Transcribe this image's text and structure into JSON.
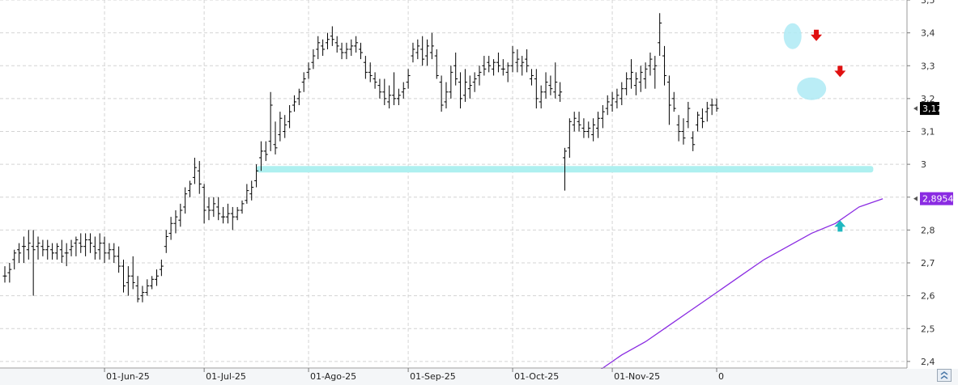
{
  "chart_data": {
    "type": "ohlc",
    "title": "",
    "xlabel": "",
    "ylabel": "",
    "ylim": [
      2.38,
      3.5
    ],
    "y_ticks": [
      "2,4",
      "2,5",
      "2,6",
      "2,7",
      "2,8",
      "2,9",
      "3",
      "3,1",
      "3,2",
      "3,3",
      "3,4",
      "3,5"
    ],
    "y_tick_values": [
      2.4,
      2.5,
      2.6,
      2.7,
      2.8,
      2.9,
      3.0,
      3.1,
      3.2,
      3.3,
      3.4,
      3.5
    ],
    "x_ticks": [
      "01-Jun-25",
      "01-Jul-25",
      "01-Ago-25",
      "01-Sep-25",
      "01-Oct-25",
      "01-Nov-25",
      "0"
    ],
    "x_tick_index": [
      21,
      42,
      64,
      85,
      107,
      128,
      150
    ],
    "ohlc": [
      [
        2.66,
        2.69,
        2.64,
        2.66
      ],
      [
        2.67,
        2.7,
        2.64,
        2.68
      ],
      [
        2.71,
        2.74,
        2.68,
        2.73
      ],
      [
        2.74,
        2.76,
        2.7,
        2.73
      ],
      [
        2.75,
        2.78,
        2.7,
        2.75
      ],
      [
        2.74,
        2.8,
        2.71,
        2.76
      ],
      [
        2.75,
        2.8,
        2.6,
        2.74
      ],
      [
        2.75,
        2.78,
        2.71,
        2.76
      ],
      [
        2.75,
        2.77,
        2.72,
        2.74
      ],
      [
        2.74,
        2.77,
        2.71,
        2.75
      ],
      [
        2.74,
        2.76,
        2.71,
        2.73
      ],
      [
        2.73,
        2.76,
        2.71,
        2.75
      ],
      [
        2.74,
        2.77,
        2.7,
        2.72
      ],
      [
        2.73,
        2.76,
        2.69,
        2.73
      ],
      [
        2.74,
        2.77,
        2.72,
        2.75
      ],
      [
        2.76,
        2.78,
        2.72,
        2.77
      ],
      [
        2.76,
        2.79,
        2.73,
        2.75
      ],
      [
        2.75,
        2.79,
        2.72,
        2.77
      ],
      [
        2.77,
        2.79,
        2.73,
        2.76
      ],
      [
        2.75,
        2.78,
        2.71,
        2.73
      ],
      [
        2.74,
        2.79,
        2.71,
        2.76
      ],
      [
        2.76,
        2.78,
        2.7,
        2.73
      ],
      [
        2.73,
        2.76,
        2.71,
        2.74
      ],
      [
        2.74,
        2.76,
        2.7,
        2.72
      ],
      [
        2.72,
        2.75,
        2.67,
        2.69
      ],
      [
        2.69,
        2.71,
        2.61,
        2.63
      ],
      [
        2.64,
        2.69,
        2.6,
        2.66
      ],
      [
        2.66,
        2.72,
        2.62,
        2.64
      ],
      [
        2.63,
        2.66,
        2.58,
        2.59
      ],
      [
        2.6,
        2.63,
        2.58,
        2.61
      ],
      [
        2.61,
        2.65,
        2.6,
        2.63
      ],
      [
        2.63,
        2.66,
        2.62,
        2.65
      ],
      [
        2.65,
        2.68,
        2.63,
        2.66
      ],
      [
        2.68,
        2.71,
        2.66,
        2.69
      ],
      [
        2.75,
        2.8,
        2.73,
        2.78
      ],
      [
        2.79,
        2.84,
        2.77,
        2.82
      ],
      [
        2.82,
        2.86,
        2.79,
        2.84
      ],
      [
        2.83,
        2.88,
        2.81,
        2.86
      ],
      [
        2.87,
        2.93,
        2.85,
        2.91
      ],
      [
        2.92,
        2.95,
        2.9,
        2.94
      ],
      [
        2.96,
        3.02,
        2.94,
        2.99
      ],
      [
        2.98,
        3.01,
        2.91,
        2.94
      ],
      [
        2.93,
        2.94,
        2.82,
        2.86
      ],
      [
        2.87,
        2.9,
        2.83,
        2.86
      ],
      [
        2.86,
        2.9,
        2.84,
        2.88
      ],
      [
        2.87,
        2.9,
        2.83,
        2.85
      ],
      [
        2.84,
        2.87,
        2.82,
        2.84
      ],
      [
        2.84,
        2.88,
        2.82,
        2.85
      ],
      [
        2.85,
        2.87,
        2.8,
        2.84
      ],
      [
        2.84,
        2.87,
        2.83,
        2.86
      ],
      [
        2.86,
        2.89,
        2.85,
        2.88
      ],
      [
        2.89,
        2.94,
        2.88,
        2.92
      ],
      [
        2.91,
        2.95,
        2.89,
        2.93
      ],
      [
        2.95,
        3.0,
        2.93,
        2.98
      ],
      [
        3.02,
        3.07,
        2.98,
        3.04
      ],
      [
        3.04,
        3.07,
        3.01,
        3.03
      ],
      [
        3.07,
        3.22,
        3.04,
        3.18
      ],
      [
        3.06,
        3.13,
        3.03,
        3.05
      ],
      [
        3.09,
        3.16,
        3.07,
        3.14
      ],
      [
        3.1,
        3.15,
        3.08,
        3.12
      ],
      [
        3.13,
        3.18,
        3.11,
        3.16
      ],
      [
        3.18,
        3.21,
        3.16,
        3.19
      ],
      [
        3.2,
        3.23,
        3.18,
        3.22
      ],
      [
        3.25,
        3.28,
        3.22,
        3.26
      ],
      [
        3.28,
        3.31,
        3.26,
        3.29
      ],
      [
        3.31,
        3.35,
        3.29,
        3.33
      ],
      [
        3.35,
        3.39,
        3.32,
        3.37
      ],
      [
        3.36,
        3.38,
        3.33,
        3.35
      ],
      [
        3.37,
        3.4,
        3.35,
        3.38
      ],
      [
        3.39,
        3.42,
        3.36,
        3.38
      ],
      [
        3.37,
        3.39,
        3.34,
        3.36
      ],
      [
        3.35,
        3.37,
        3.32,
        3.34
      ],
      [
        3.34,
        3.37,
        3.32,
        3.35
      ],
      [
        3.35,
        3.38,
        3.33,
        3.36
      ],
      [
        3.36,
        3.39,
        3.34,
        3.37
      ],
      [
        3.35,
        3.37,
        3.32,
        3.34
      ],
      [
        3.31,
        3.33,
        3.26,
        3.28
      ],
      [
        3.28,
        3.31,
        3.25,
        3.27
      ],
      [
        3.26,
        3.28,
        3.23,
        3.25
      ],
      [
        3.24,
        3.26,
        3.2,
        3.22
      ],
      [
        3.22,
        3.26,
        3.18,
        3.2
      ],
      [
        3.19,
        3.24,
        3.17,
        3.21
      ],
      [
        3.21,
        3.28,
        3.18,
        3.2
      ],
      [
        3.2,
        3.23,
        3.18,
        3.21
      ],
      [
        3.22,
        3.25,
        3.2,
        3.23
      ],
      [
        3.25,
        3.29,
        3.23,
        3.27
      ],
      [
        3.33,
        3.37,
        3.31,
        3.35
      ],
      [
        3.34,
        3.38,
        3.32,
        3.36
      ],
      [
        3.35,
        3.39,
        3.3,
        3.32
      ],
      [
        3.33,
        3.38,
        3.3,
        3.36
      ],
      [
        3.34,
        3.4,
        3.32,
        3.36
      ],
      [
        3.33,
        3.35,
        3.26,
        3.27
      ],
      [
        3.25,
        3.27,
        3.16,
        3.18
      ],
      [
        3.19,
        3.25,
        3.17,
        3.22
      ],
      [
        3.22,
        3.3,
        3.2,
        3.28
      ],
      [
        3.3,
        3.34,
        3.24,
        3.26
      ],
      [
        3.25,
        3.28,
        3.17,
        3.2
      ],
      [
        3.21,
        3.29,
        3.19,
        3.25
      ],
      [
        3.23,
        3.27,
        3.2,
        3.24
      ],
      [
        3.25,
        3.28,
        3.22,
        3.26
      ],
      [
        3.27,
        3.3,
        3.24,
        3.28
      ],
      [
        3.3,
        3.33,
        3.27,
        3.29
      ],
      [
        3.31,
        3.33,
        3.28,
        3.3
      ],
      [
        3.29,
        3.32,
        3.27,
        3.31
      ],
      [
        3.31,
        3.34,
        3.28,
        3.3
      ],
      [
        3.29,
        3.32,
        3.27,
        3.29
      ],
      [
        3.28,
        3.31,
        3.25,
        3.3
      ],
      [
        3.3,
        3.36,
        3.28,
        3.34
      ],
      [
        3.31,
        3.35,
        3.28,
        3.32
      ],
      [
        3.3,
        3.33,
        3.27,
        3.31
      ],
      [
        3.32,
        3.35,
        3.28,
        3.3
      ],
      [
        3.26,
        3.29,
        3.24,
        3.27
      ],
      [
        3.26,
        3.29,
        3.17,
        3.2
      ],
      [
        3.19,
        3.24,
        3.17,
        3.22
      ],
      [
        3.22,
        3.28,
        3.2,
        3.25
      ],
      [
        3.24,
        3.27,
        3.21,
        3.23
      ],
      [
        3.22,
        3.31,
        3.2,
        3.25
      ],
      [
        3.21,
        3.25,
        3.19,
        3.22
      ],
      [
        3.02,
        3.05,
        2.92,
        3.04
      ],
      [
        3.05,
        3.14,
        3.02,
        3.13
      ],
      [
        3.12,
        3.16,
        3.1,
        3.14
      ],
      [
        3.13,
        3.16,
        3.1,
        3.12
      ],
      [
        3.11,
        3.14,
        3.08,
        3.1
      ],
      [
        3.1,
        3.13,
        3.08,
        3.11
      ],
      [
        3.09,
        3.14,
        3.07,
        3.12
      ],
      [
        3.11,
        3.16,
        3.08,
        3.14
      ],
      [
        3.14,
        3.18,
        3.11,
        3.16
      ],
      [
        3.17,
        3.21,
        3.15,
        3.19
      ],
      [
        3.18,
        3.22,
        3.16,
        3.2
      ],
      [
        3.19,
        3.23,
        3.17,
        3.21
      ],
      [
        3.2,
        3.25,
        3.18,
        3.23
      ],
      [
        3.23,
        3.28,
        3.21,
        3.26
      ],
      [
        3.26,
        3.32,
        3.23,
        3.28
      ],
      [
        3.24,
        3.28,
        3.21,
        3.26
      ],
      [
        3.25,
        3.3,
        3.22,
        3.28
      ],
      [
        3.26,
        3.31,
        3.23,
        3.29
      ],
      [
        3.3,
        3.34,
        3.27,
        3.32
      ],
      [
        3.29,
        3.33,
        3.23,
        3.3
      ],
      [
        3.37,
        3.46,
        3.33,
        3.43
      ],
      [
        3.33,
        3.36,
        3.24,
        3.27
      ],
      [
        3.25,
        3.27,
        3.12,
        3.18
      ],
      [
        3.2,
        3.22,
        3.16,
        3.17
      ],
      [
        3.12,
        3.15,
        3.07,
        3.1
      ],
      [
        3.1,
        3.14,
        3.06,
        3.08
      ],
      [
        3.13,
        3.19,
        3.11,
        3.17
      ],
      [
        3.08,
        3.1,
        3.04,
        3.06
      ],
      [
        3.12,
        3.16,
        3.1,
        3.15
      ],
      [
        3.14,
        3.17,
        3.11,
        3.13
      ],
      [
        3.16,
        3.19,
        3.13,
        3.17
      ],
      [
        3.18,
        3.2,
        3.15,
        3.18
      ],
      [
        3.18,
        3.2,
        3.16,
        3.17
      ]
    ],
    "series": [
      {
        "type": "line",
        "color": "#8a2be2",
        "x": [
          125,
          130,
          135,
          140,
          145,
          150,
          155,
          160,
          165,
          170,
          175,
          180,
          185
        ],
        "y": [
          2.37,
          2.42,
          2.46,
          2.51,
          2.56,
          2.61,
          2.66,
          2.71,
          2.75,
          2.79,
          2.82,
          2.87,
          2.895
        ]
      }
    ],
    "support_zone": {
      "y": 2.985,
      "color": "#aef0f0"
    },
    "last_price_tag": {
      "text": "3,17",
      "value": 3.17,
      "color": "#000000"
    },
    "ma_tag": {
      "text": "2,8954",
      "value": 2.8954,
      "color": "#8a2be2"
    },
    "annotations": [
      {
        "type": "ellipse",
        "color": "#aeeaf5",
        "at_bar": 166,
        "y": 3.39
      },
      {
        "type": "ellipse",
        "color": "#aeeaf5",
        "at_bar": 170,
        "y": 3.23
      },
      {
        "type": "arrow-down",
        "color": "#e01010",
        "at_bar": 171,
        "y": 3.39
      },
      {
        "type": "arrow-down",
        "color": "#e01010",
        "at_bar": 176,
        "y": 3.28
      },
      {
        "type": "arrow-up",
        "color": "#20b8c0",
        "at_bar": 176,
        "y": 2.81
      }
    ],
    "grid": true
  }
}
